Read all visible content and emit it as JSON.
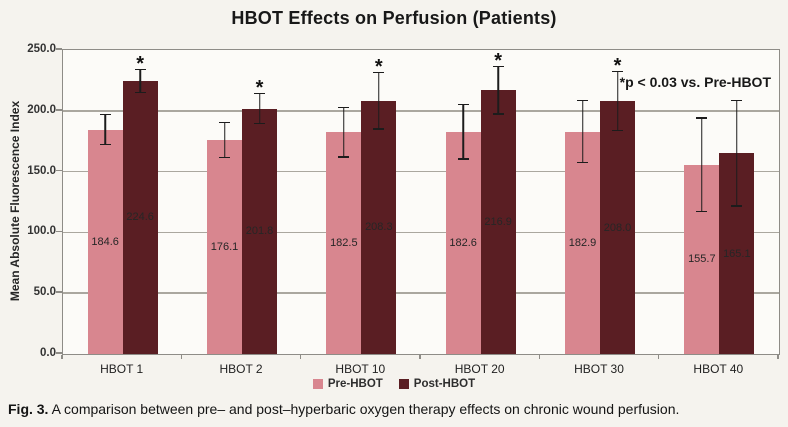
{
  "title": "HBOT Effects on Perfusion (Patients)",
  "annotation": "*p < 0.03 vs. Pre-HBOT",
  "y_axis_title": "Mean Absolute Fluorescence Index",
  "legend": {
    "pre": "Pre-HBOT",
    "post": "Post-HBOT"
  },
  "caption": {
    "label": "Fig. 3.",
    "text": "A comparison between pre– and post–hyperbaric oxygen therapy effects on chronic wound perfusion."
  },
  "colors": {
    "pre_bar": "#d8868f",
    "post_bar": "#5a1e23",
    "gridline": "#aaa79f",
    "plot_border": "#8e8c87",
    "background": "#f5f3ee"
  },
  "chart_data": {
    "type": "bar",
    "title": "HBOT Effects on Perfusion (Patients)",
    "categories": [
      "HBOT 1",
      "HBOT 2",
      "HBOT 10",
      "HBOT 20",
      "HBOT 30",
      "HBOT 40"
    ],
    "series": [
      {
        "name": "Pre-HBOT",
        "color": "#d8868f",
        "values": [
          184.6,
          176.1,
          182.5,
          182.6,
          182.9,
          155.7
        ],
        "errors": [
          13,
          15,
          21,
          23,
          26,
          39
        ]
      },
      {
        "name": "Post-HBOT",
        "color": "#5a1e23",
        "values": [
          224.6,
          201.8,
          208.3,
          216.9,
          208.0,
          165.1
        ],
        "errors": [
          10,
          13,
          24,
          20,
          25,
          44
        ],
        "significant": [
          true,
          true,
          true,
          true,
          true,
          false
        ]
      }
    ],
    "xlabel": "",
    "ylabel": "Mean Absolute Fluorescence Index",
    "ylim": [
      0,
      250
    ],
    "ytick_labels": [
      "0.0",
      "50.0",
      "100.0",
      "150.0",
      "200.0",
      "250.0"
    ],
    "ytick_values": [
      0,
      50,
      100,
      150,
      200,
      250
    ],
    "grid": true,
    "error_bars": true,
    "legend_position": "bottom-center",
    "annotation": "*p < 0.03 vs. Pre-HBOT",
    "value_labels": "centered-in-bar",
    "significance_note": "asterisk above Post-HBOT error bars except HBOT 40"
  }
}
